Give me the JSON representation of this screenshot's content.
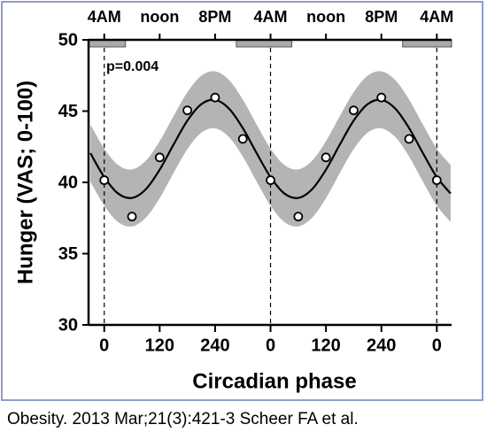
{
  "chart_data": {
    "type": "line",
    "ylabel": "Hunger (VAS; 0-100)",
    "xlabel": "Circadian phase",
    "annotation": "p=0.004",
    "xlim": [
      -34,
      752
    ],
    "ylim": [
      30,
      50
    ],
    "yticks": [
      30,
      35,
      40,
      45,
      50
    ],
    "xticks": [
      0,
      120,
      240,
      {
        "value": 360,
        "label": "0"
      },
      {
        "value": 480,
        "label": "120"
      },
      {
        "value": 600,
        "label": "240"
      },
      {
        "value": 720,
        "label": "0"
      }
    ],
    "x2ticks": [
      {
        "value": 0,
        "label": "4AM"
      },
      {
        "value": 120,
        "label": "noon"
      },
      {
        "value": 240,
        "label": "8PM"
      },
      {
        "value": 360,
        "label": "4AM"
      },
      {
        "value": 480,
        "label": "noon"
      },
      {
        "value": 600,
        "label": "8PM"
      },
      {
        "value": 720,
        "label": "4AM"
      }
    ],
    "vlines": [
      0,
      360,
      720
    ],
    "sleep": [
      [
        -34,
        46
      ],
      [
        286,
        406
      ],
      [
        646,
        752
      ]
    ],
    "points": {
      "x": [
        0,
        60,
        120,
        180,
        240,
        300,
        360,
        420,
        480,
        540,
        600,
        660,
        720
      ],
      "values": [
        40.15,
        37.6,
        41.75,
        45.05,
        45.95,
        43.05,
        40.15,
        37.6,
        41.75,
        45.05,
        45.95,
        43.05,
        40.15
      ]
    },
    "fit": {
      "color": "#000000",
      "x": [
        -30,
        0,
        30,
        60,
        90,
        120,
        150,
        180,
        210,
        240,
        270,
        300,
        330,
        360,
        390,
        420,
        450,
        480,
        510,
        540,
        570,
        600,
        630,
        660,
        690,
        720,
        750
      ],
      "values": [
        42.05,
        40.37,
        39.22,
        38.91,
        39.52,
        40.89,
        42.65,
        44.33,
        45.48,
        45.79,
        45.18,
        43.81,
        42.05,
        40.37,
        39.22,
        38.91,
        39.52,
        40.89,
        42.65,
        44.33,
        45.48,
        45.79,
        45.18,
        43.81,
        42.05,
        40.37,
        39.22
      ],
      "upper": [
        44.05,
        42.37,
        41.22,
        40.91,
        41.52,
        42.89,
        44.65,
        46.33,
        47.48,
        47.79,
        47.18,
        45.81,
        44.05,
        42.37,
        41.22,
        40.91,
        41.52,
        42.89,
        44.65,
        46.33,
        47.48,
        47.79,
        47.18,
        45.81,
        44.05,
        42.37,
        41.22
      ],
      "lower": [
        40.05,
        38.37,
        37.22,
        36.91,
        37.52,
        38.89,
        40.65,
        42.33,
        43.48,
        43.79,
        43.18,
        41.81,
        40.05,
        38.37,
        37.22,
        36.91,
        37.52,
        38.89,
        40.65,
        42.33,
        43.48,
        43.79,
        43.18,
        41.81,
        40.05,
        38.37,
        37.22
      ],
      "band_color": "#b4b4b4"
    }
  },
  "caption": "Obesity. 2013 Mar;21(3):421-3 Scheer FA et al."
}
